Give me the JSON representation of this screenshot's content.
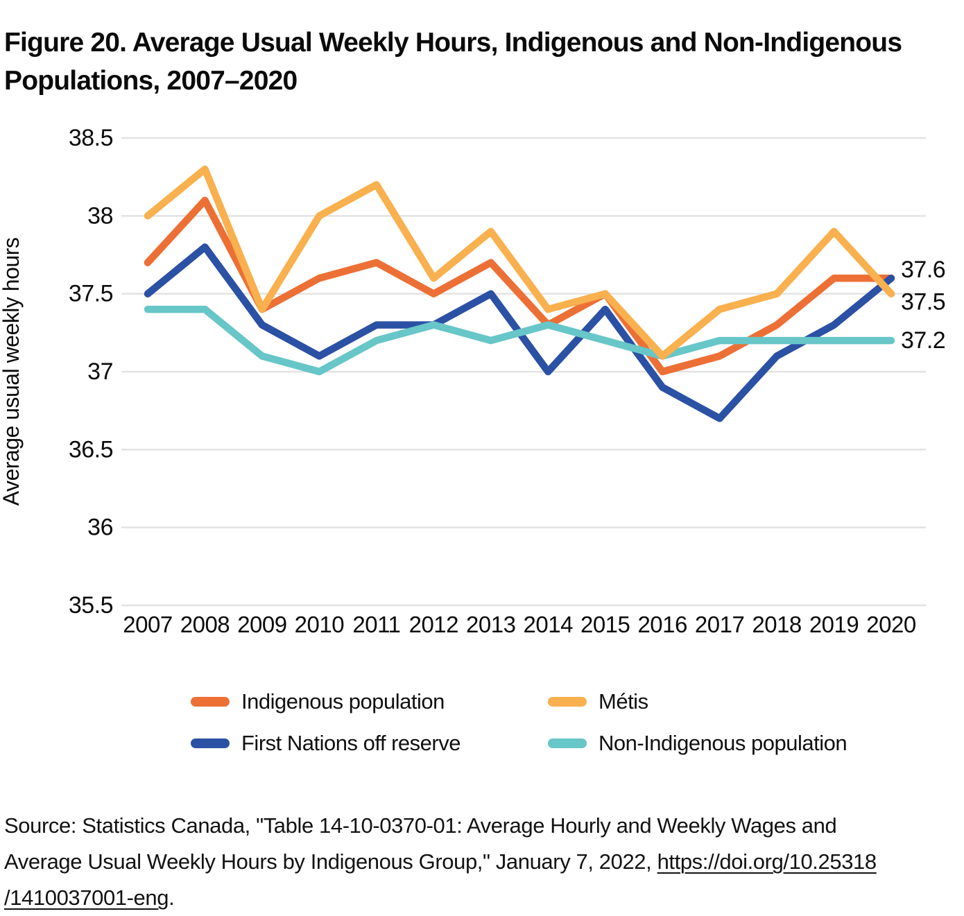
{
  "header": {
    "title_line1": "Figure 20. Average Usual Weekly Hours, Indigenous and Non-Indigenous",
    "title_line2": "Populations, 2007–2020"
  },
  "chart_data": {
    "type": "line",
    "title": "Figure 20. Average Usual Weekly Hours, Indigenous and Non-Indigenous Populations, 2007–2020",
    "xlabel": "",
    "ylabel": "Average usual weekly hours",
    "x": [
      2007,
      2008,
      2009,
      2010,
      2011,
      2012,
      2013,
      2014,
      2015,
      2016,
      2017,
      2018,
      2019,
      2020
    ],
    "x_tick_labels": [
      "2007",
      "2008",
      "2009",
      "2010",
      "2011",
      "2012",
      "2013",
      "2014",
      "2015",
      "2016",
      "2017",
      "2018",
      "2019",
      "2020"
    ],
    "ylim": [
      35.5,
      38.5
    ],
    "y_tick_labels": [
      "38.5",
      "38",
      "37.5",
      "37",
      "36.5",
      "36",
      "35.5"
    ],
    "y_tick_values": [
      38.5,
      38.0,
      37.5,
      37.0,
      36.5,
      36.0,
      35.5
    ],
    "grid": true,
    "legend_position": "bottom",
    "series": [
      {
        "name": "Indigenous population",
        "color": "#EC7036",
        "values": [
          37.7,
          38.1,
          37.4,
          37.6,
          37.7,
          37.5,
          37.7,
          37.3,
          37.5,
          37.0,
          37.1,
          37.3,
          37.6,
          37.6
        ]
      },
      {
        "name": "Métis",
        "color": "#F9B04E",
        "values": [
          38.0,
          38.3,
          37.4,
          38.0,
          38.2,
          37.6,
          37.9,
          37.4,
          37.5,
          37.1,
          37.4,
          37.5,
          37.9,
          37.5
        ]
      },
      {
        "name": "First Nations off reserve",
        "color": "#2B51A4",
        "values": [
          37.5,
          37.8,
          37.3,
          37.1,
          37.3,
          37.3,
          37.5,
          37.0,
          37.4,
          36.9,
          36.7,
          37.1,
          37.3,
          37.6
        ]
      },
      {
        "name": "Non-Indigenous population",
        "color": "#67C6C7",
        "values": [
          37.4,
          37.4,
          37.1,
          37.0,
          37.2,
          37.3,
          37.2,
          37.3,
          37.2,
          37.1,
          37.2,
          37.2,
          37.2,
          37.2
        ]
      }
    ],
    "draw_order": [
      0,
      2,
      3,
      1
    ],
    "end_labels": [
      {
        "text": "37.6",
        "value": 37.6
      },
      {
        "text": "37.5",
        "value": 37.5
      },
      {
        "text": "37.2",
        "value": 37.2
      }
    ],
    "gridline_color": "#e2e2e2"
  },
  "legend": {
    "items": [
      {
        "label": "Indigenous population",
        "color": "#EC7036"
      },
      {
        "label": "Métis",
        "color": "#F9B04E"
      },
      {
        "label": "First Nations off reserve",
        "color": "#2B51A4"
      },
      {
        "label": "Non-Indigenous population",
        "color": "#67C6C7"
      }
    ]
  },
  "source": {
    "line1": "Source: Statistics Canada, \"Table 14-10-0370-01: Average Hourly and Weekly Wages and",
    "line2_text": "Average Usual Weekly Hours by Indigenous Group,\" January 7, 2022, ",
    "line2_link": "https://doi.org/10.25318",
    "line3_link": "/1410037001-eng",
    "line3_text": "."
  }
}
